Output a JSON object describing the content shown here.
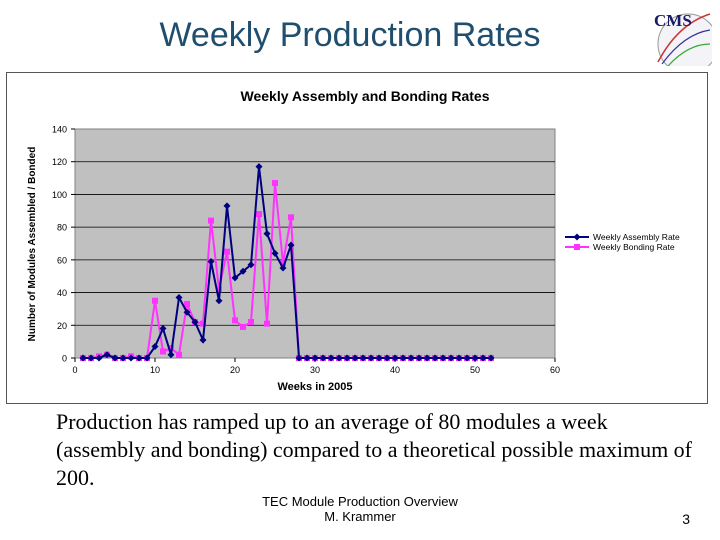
{
  "slide": {
    "title": "Weekly Production Rates",
    "logo_text": "CMS",
    "body_text": "Production has ramped up to an average of 80 modules a week (assembly and bonding) compared to a theoretical possible maximum of 200.",
    "footer_line1": "TEC Module Production Overview",
    "footer_line2": "M. Krammer",
    "page_number": "3"
  },
  "colors": {
    "title": "#1f4e6e",
    "plot_bg": "#c0c0c0",
    "assembly": "#000080",
    "bonding": "#ff33ff"
  },
  "chart_data": {
    "type": "line",
    "title": "Weekly Assembly and Bonding Rates",
    "xlabel": "Weeks in 2005",
    "ylabel": "Number of Modules Assembled / Bonded",
    "xlim": [
      0,
      60
    ],
    "ylim": [
      0,
      140
    ],
    "xticks": [
      0,
      10,
      20,
      30,
      40,
      50,
      60
    ],
    "yticks": [
      0,
      20,
      40,
      60,
      80,
      100,
      120,
      140
    ],
    "legend": "right",
    "series": [
      {
        "name": "Weekly Assembly Rate",
        "marker": "diamond",
        "x": [
          1,
          2,
          3,
          4,
          5,
          6,
          7,
          8,
          9,
          10,
          11,
          12,
          13,
          14,
          15,
          16,
          17,
          18,
          19,
          20,
          21,
          22,
          23,
          24,
          25,
          26,
          27,
          28,
          29,
          30,
          31,
          32,
          33,
          34,
          35,
          36,
          37,
          38,
          39,
          40,
          41,
          42,
          43,
          44,
          45,
          46,
          47,
          48,
          49,
          50,
          51,
          52
        ],
        "y": [
          0,
          0,
          0,
          2,
          0,
          0,
          0,
          0,
          0,
          7,
          18,
          2,
          37,
          28,
          22,
          11,
          59,
          35,
          93,
          49,
          53,
          57,
          117,
          76,
          64,
          55,
          69,
          0,
          0,
          0,
          0,
          0,
          0,
          0,
          0,
          0,
          0,
          0,
          0,
          0,
          0,
          0,
          0,
          0,
          0,
          0,
          0,
          0,
          0,
          0,
          0,
          0
        ]
      },
      {
        "name": "Weekly Bonding Rate",
        "marker": "square",
        "x": [
          1,
          2,
          3,
          4,
          5,
          6,
          7,
          8,
          9,
          10,
          11,
          12,
          13,
          14,
          15,
          16,
          17,
          18,
          19,
          20,
          21,
          22,
          23,
          24,
          25,
          26,
          27,
          28,
          29,
          30,
          31,
          32,
          33,
          34,
          35,
          36,
          37,
          38,
          39,
          40,
          41,
          42,
          43,
          44,
          45,
          46,
          47,
          48,
          49,
          50,
          51,
          52
        ],
        "y": [
          0,
          0,
          1,
          2,
          0,
          0,
          1,
          0,
          0,
          35,
          4,
          6,
          2,
          33,
          22,
          21,
          84,
          42,
          65,
          23,
          19,
          22,
          88,
          21,
          107,
          58,
          86,
          0,
          0,
          0,
          0,
          0,
          0,
          0,
          0,
          0,
          0,
          0,
          0,
          0,
          0,
          0,
          0,
          0,
          0,
          0,
          0,
          0,
          0,
          0,
          0,
          0
        ]
      }
    ]
  }
}
